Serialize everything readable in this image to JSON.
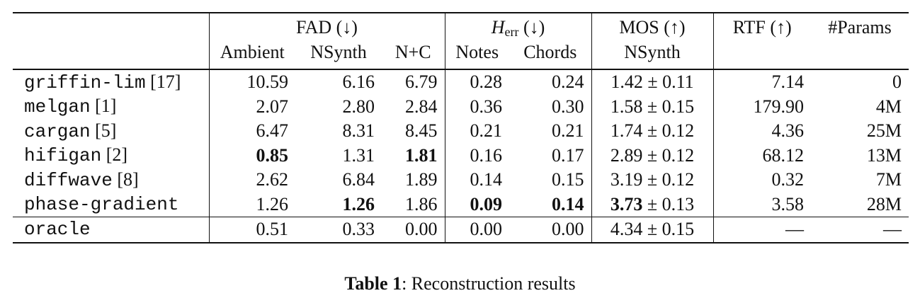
{
  "header": {
    "group_fad": "FAD (↓)",
    "group_herr_symbol": "H",
    "group_herr_subscript": "err",
    "group_herr_arrow": " (↓)",
    "group_mos": "MOS (↑)",
    "col_rtf": "RTF (↑)",
    "col_params": "#Params",
    "sub_ambient": "Ambient",
    "sub_nsynth": "NSynth",
    "sub_nc": "N+C",
    "sub_notes": "Notes",
    "sub_chords": "Chords",
    "sub_mos_nsynth": "NSynth"
  },
  "rows": [
    {
      "method": "griffin-lim",
      "ref": " [17]",
      "amb": "10.59",
      "nsyn": "6.16",
      "nc": "6.79",
      "notes": "0.28",
      "chords": "0.24",
      "mos_mean": "1.42",
      "mos_pm": " ± ",
      "mos_sd": "0.11",
      "rtf": "7.14",
      "params": "0"
    },
    {
      "method": "melgan",
      "ref": " [1]",
      "amb": "2.07",
      "nsyn": "2.80",
      "nc": "2.84",
      "notes": "0.36",
      "chords": "0.30",
      "mos_mean": "1.58",
      "mos_pm": " ± ",
      "mos_sd": "0.15",
      "rtf": "179.90",
      "params": "4M"
    },
    {
      "method": "cargan",
      "ref": " [5]",
      "amb": "6.47",
      "nsyn": "8.31",
      "nc": "8.45",
      "notes": "0.21",
      "chords": "0.21",
      "mos_mean": "1.74",
      "mos_pm": " ± ",
      "mos_sd": "0.12",
      "rtf": "4.36",
      "params": "25M"
    },
    {
      "method": "hifigan",
      "ref": " [2]",
      "amb": "0.85",
      "nsyn": "1.31",
      "nc": "1.81",
      "notes": "0.16",
      "chords": "0.17",
      "mos_mean": "2.89",
      "mos_pm": " ± ",
      "mos_sd": "0.12",
      "rtf": "68.12",
      "params": "13M"
    },
    {
      "method": "diffwave",
      "ref": " [8]",
      "amb": "2.62",
      "nsyn": "6.84",
      "nc": "1.89",
      "notes": "0.14",
      "chords": "0.15",
      "mos_mean": "3.19",
      "mos_pm": " ± ",
      "mos_sd": "0.12",
      "rtf": "0.32",
      "params": "7M"
    },
    {
      "method": "phase-gradient",
      "ref": "",
      "amb": "1.26",
      "nsyn": "1.26",
      "nc": "1.86",
      "notes": "0.09",
      "chords": "0.14",
      "mos_mean": "3.73",
      "mos_pm": " ± ",
      "mos_sd": "0.13",
      "rtf": "3.58",
      "params": "28M"
    }
  ],
  "oracle": {
    "method": "oracle",
    "amb": "0.51",
    "nsyn": "0.33",
    "nc": "0.00",
    "notes": "0.00",
    "chords": "0.00",
    "mos": "4.34 ± 0.15",
    "rtf": "—",
    "params": "—"
  },
  "caption": {
    "label": "Table 1",
    "text": ": Reconstruction results"
  }
}
